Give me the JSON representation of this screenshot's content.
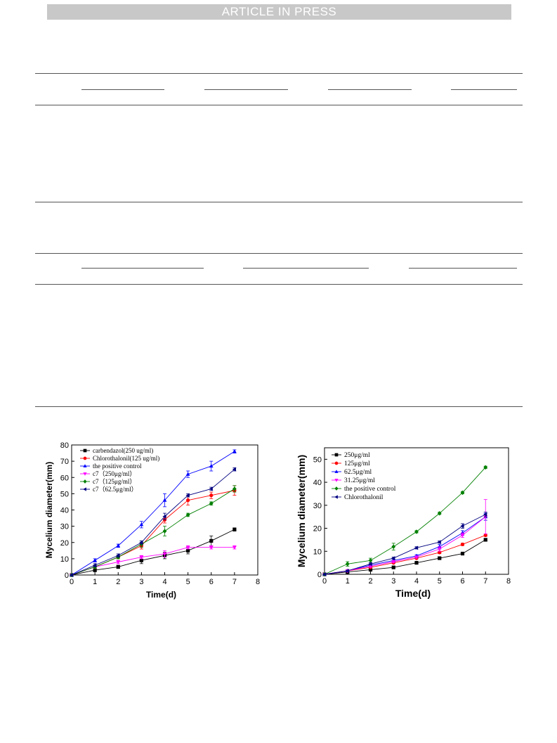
{
  "header": {
    "banner_text": "ARTICLE IN PRESS"
  },
  "charts": [
    {
      "type": "line",
      "x": [
        0,
        1,
        2,
        3,
        4,
        5,
        6,
        7
      ],
      "xlabel": "Time(d)",
      "ylabel": "Mycelium diameter(mm)",
      "xlim": [
        0,
        8
      ],
      "ylim": [
        0,
        80
      ],
      "xticks": [
        0,
        1,
        2,
        3,
        4,
        5,
        6,
        7,
        8
      ],
      "yticks": [
        0,
        10,
        20,
        30,
        40,
        50,
        60,
        70,
        80
      ],
      "legend_position": "top-left",
      "series": [
        {
          "name": "carbendazol(250 ug/ml)",
          "color": "#000000",
          "marker": "square",
          "values": [
            0,
            3,
            5,
            9,
            12,
            15,
            21,
            28
          ],
          "errors": [
            0,
            1,
            1,
            2,
            2,
            2,
            3,
            1
          ]
        },
        {
          "name": "Chlorothalonil(125 ug/ml)",
          "color": "#ff0000",
          "marker": "circle",
          "values": [
            0,
            5,
            11,
            18,
            34,
            46,
            49,
            52
          ],
          "errors": [
            0,
            1,
            1,
            2,
            2,
            3,
            2,
            3
          ]
        },
        {
          "name": "the positive control",
          "color": "#0000ff",
          "marker": "triangle-up",
          "values": [
            0,
            9,
            18,
            31,
            46,
            62,
            67,
            76
          ],
          "errors": [
            0,
            1,
            1,
            2,
            4,
            2,
            3,
            1
          ]
        },
        {
          "name": "c7（250μg/ml）",
          "color": "#ff00ff",
          "marker": "triangle-down",
          "values": [
            0,
            5,
            8,
            11,
            13,
            17,
            17,
            17
          ],
          "errors": [
            0,
            1,
            1,
            1,
            2,
            1,
            1,
            1
          ]
        },
        {
          "name": "c7（125μg/ml）",
          "color": "#008000",
          "marker": "diamond",
          "values": [
            0,
            5,
            11,
            19,
            27,
            37,
            44,
            53
          ],
          "errors": [
            0,
            1,
            1,
            2,
            3,
            1,
            1,
            2
          ]
        },
        {
          "name": "c7（62.5μg/ml）",
          "color": "#000080",
          "marker": "triangle-left",
          "values": [
            0,
            6,
            12,
            20,
            36,
            49,
            53,
            65
          ],
          "errors": [
            0,
            1,
            1,
            1,
            2,
            1,
            1,
            1
          ]
        }
      ]
    },
    {
      "type": "line",
      "x": [
        0,
        1,
        2,
        3,
        4,
        5,
        6,
        7
      ],
      "xlabel": "Time(d)",
      "ylabel": "Mycelium diameter(mm)",
      "xlim": [
        0,
        8
      ],
      "ylim": [
        0,
        55
      ],
      "xticks": [
        0,
        1,
        2,
        3,
        4,
        5,
        6,
        7,
        8
      ],
      "yticks": [
        0,
        10,
        20,
        30,
        40,
        50
      ],
      "legend_position": "top-left",
      "series": [
        {
          "name": "250μg/ml",
          "color": "#000000",
          "marker": "square",
          "values": [
            0,
            1,
            2,
            3,
            5,
            7,
            9,
            15
          ],
          "errors": [
            0,
            0.3,
            0.3,
            0.3,
            0.3,
            0.3,
            0.3,
            0.5
          ]
        },
        {
          "name": "125μg/ml",
          "color": "#ff0000",
          "marker": "circle",
          "values": [
            0,
            1.5,
            3,
            5,
            7,
            9.5,
            13,
            17
          ],
          "errors": [
            0,
            0.3,
            0.3,
            0.3,
            0.3,
            0.5,
            0.5,
            0.5
          ]
        },
        {
          "name": "62.5μg/ml",
          "color": "#0000ff",
          "marker": "triangle-up",
          "values": [
            0,
            1.5,
            4,
            6,
            8,
            12,
            18,
            25
          ],
          "errors": [
            0,
            0.3,
            0.5,
            0.5,
            0.5,
            1,
            1,
            1.5
          ]
        },
        {
          "name": "31.25μg/ml",
          "color": "#ff00ff",
          "marker": "triangle-down",
          "values": [
            0,
            1.5,
            3.5,
            5.5,
            7.5,
            11,
            17,
            25
          ],
          "errors": [
            0,
            0.3,
            0.5,
            0.5,
            0.5,
            1,
            1,
            7.5
          ]
        },
        {
          "name": "the positive control",
          "color": "#008000",
          "marker": "diamond",
          "values": [
            0,
            4.5,
            6,
            12,
            18.5,
            26.5,
            35.5,
            46.5
          ],
          "errors": [
            0,
            1,
            1,
            1.5,
            0.5,
            0.5,
            0.5,
            0.5
          ]
        },
        {
          "name": "Chlorothalonil",
          "color": "#000080",
          "marker": "triangle-left",
          "values": [
            0,
            1.5,
            4.5,
            7,
            11.5,
            14,
            21,
            26
          ],
          "errors": [
            0,
            0.3,
            0.5,
            0.5,
            0.5,
            0.5,
            1,
            1
          ]
        }
      ]
    }
  ]
}
